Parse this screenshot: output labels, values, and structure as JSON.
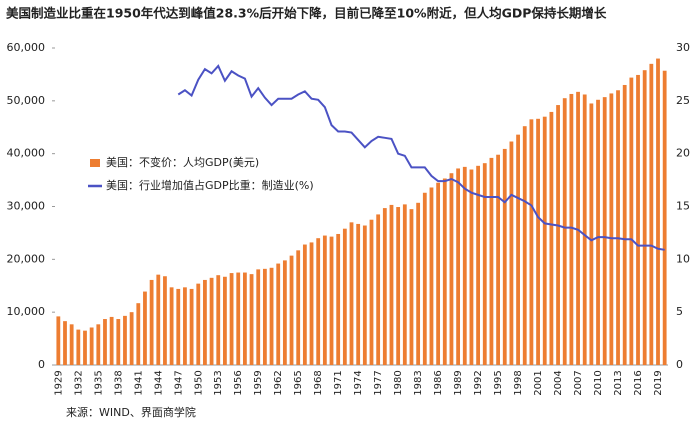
{
  "chart_data": {
    "type": "bar_line",
    "title": "美国制造业比重在1950年代达到峰值28.3%后开始下降，目前已降至10%附近，但人均GDP保持长期增长",
    "source": "来源：WIND、界面商学院",
    "categories": [
      "1929",
      null,
      null,
      "1932",
      null,
      null,
      "1935",
      null,
      null,
      "1938",
      null,
      null,
      "1941",
      null,
      null,
      "1944",
      null,
      null,
      "1947",
      null,
      null,
      "1950",
      null,
      null,
      "1953",
      null,
      null,
      "1956",
      null,
      null,
      "1959",
      null,
      null,
      "1962",
      null,
      null,
      "1965",
      null,
      null,
      "1968",
      null,
      null,
      "1971",
      null,
      null,
      "1974",
      null,
      null,
      "1977",
      null,
      null,
      "1980",
      null,
      null,
      "1983",
      null,
      null,
      "1986",
      null,
      null,
      "1989",
      null,
      null,
      "1992",
      null,
      null,
      "1995",
      null,
      null,
      "1998",
      null,
      null,
      "2001",
      null,
      null,
      "2004",
      null,
      null,
      "2007",
      null,
      null,
      "2010",
      null,
      null,
      "2013",
      null,
      null,
      "2016",
      null,
      null,
      "2019",
      null
    ],
    "series": [
      {
        "name": "美国：不变价：人均GDP(美元)",
        "color": "#ed7d31",
        "kind": "bar",
        "values": [
          9200,
          8300,
          7700,
          6700,
          6500,
          7100,
          7700,
          8700,
          9100,
          8700,
          9300,
          10000,
          11700,
          13900,
          16100,
          17100,
          16800,
          14700,
          14400,
          14700,
          14400,
          15400,
          16100,
          16500,
          17000,
          16700,
          17400,
          17500,
          17500,
          17200,
          18100,
          18200,
          18400,
          19200,
          19800,
          20700,
          21700,
          22800,
          23200,
          24000,
          24500,
          24300,
          24800,
          25800,
          27000,
          26700,
          26400,
          27500,
          28500,
          29700,
          30300,
          29900,
          30400,
          29500,
          30700,
          32600,
          33600,
          34500,
          35300,
          36300,
          37200,
          37500,
          37000,
          37700,
          38200,
          39200,
          39800,
          40900,
          42300,
          43600,
          45200,
          46500,
          46600,
          47000,
          47900,
          49200,
          50500,
          51300,
          51700,
          51200,
          49500,
          50200,
          50700,
          51400,
          52000,
          53000,
          54400,
          54900,
          55800,
          57000,
          58000,
          55700
        ]
      },
      {
        "name": "美国：行业增加值占GDP比重：制造业(%)",
        "color": "#4b52c4",
        "kind": "line",
        "axis": "y2",
        "values": [
          null,
          null,
          null,
          null,
          null,
          null,
          null,
          null,
          null,
          null,
          null,
          null,
          null,
          null,
          null,
          null,
          null,
          null,
          25.6,
          26.0,
          25.5,
          27.0,
          28.0,
          27.6,
          28.3,
          26.9,
          27.8,
          27.4,
          27.1,
          25.4,
          26.2,
          25.3,
          24.6,
          25.2,
          25.2,
          25.2,
          25.6,
          25.9,
          25.2,
          25.1,
          24.4,
          22.7,
          22.1,
          22.1,
          22.0,
          21.3,
          20.6,
          21.2,
          21.6,
          21.5,
          21.4,
          20.0,
          19.8,
          18.7,
          18.7,
          18.7,
          17.9,
          17.4,
          17.4,
          17.6,
          17.3,
          16.7,
          16.3,
          16.1,
          15.9,
          15.9,
          15.9,
          15.4,
          16.1,
          15.8,
          15.5,
          15.1,
          14.0,
          13.4,
          13.3,
          13.2,
          13.0,
          13.0,
          12.8,
          12.3,
          11.8,
          12.1,
          12.1,
          12.0,
          12.0,
          11.9,
          11.9,
          11.3,
          11.3,
          11.3,
          11.0,
          10.9
        ]
      }
    ],
    "ylim": [
      0,
      60000
    ],
    "yticks": [
      0,
      {
        "value": 10000,
        "label": "10,000"
      },
      {
        "value": 20000,
        "label": "20,000"
      },
      {
        "value": 30000,
        "label": "30,000"
      },
      {
        "value": 40000,
        "label": "40,000"
      },
      {
        "value": 50000,
        "label": "50,000"
      },
      {
        "value": 60000,
        "label": "60,000"
      }
    ],
    "y2lim": [
      0,
      30
    ],
    "y2ticks": [
      0,
      5,
      10,
      15,
      20,
      25,
      30
    ],
    "grid": false
  }
}
